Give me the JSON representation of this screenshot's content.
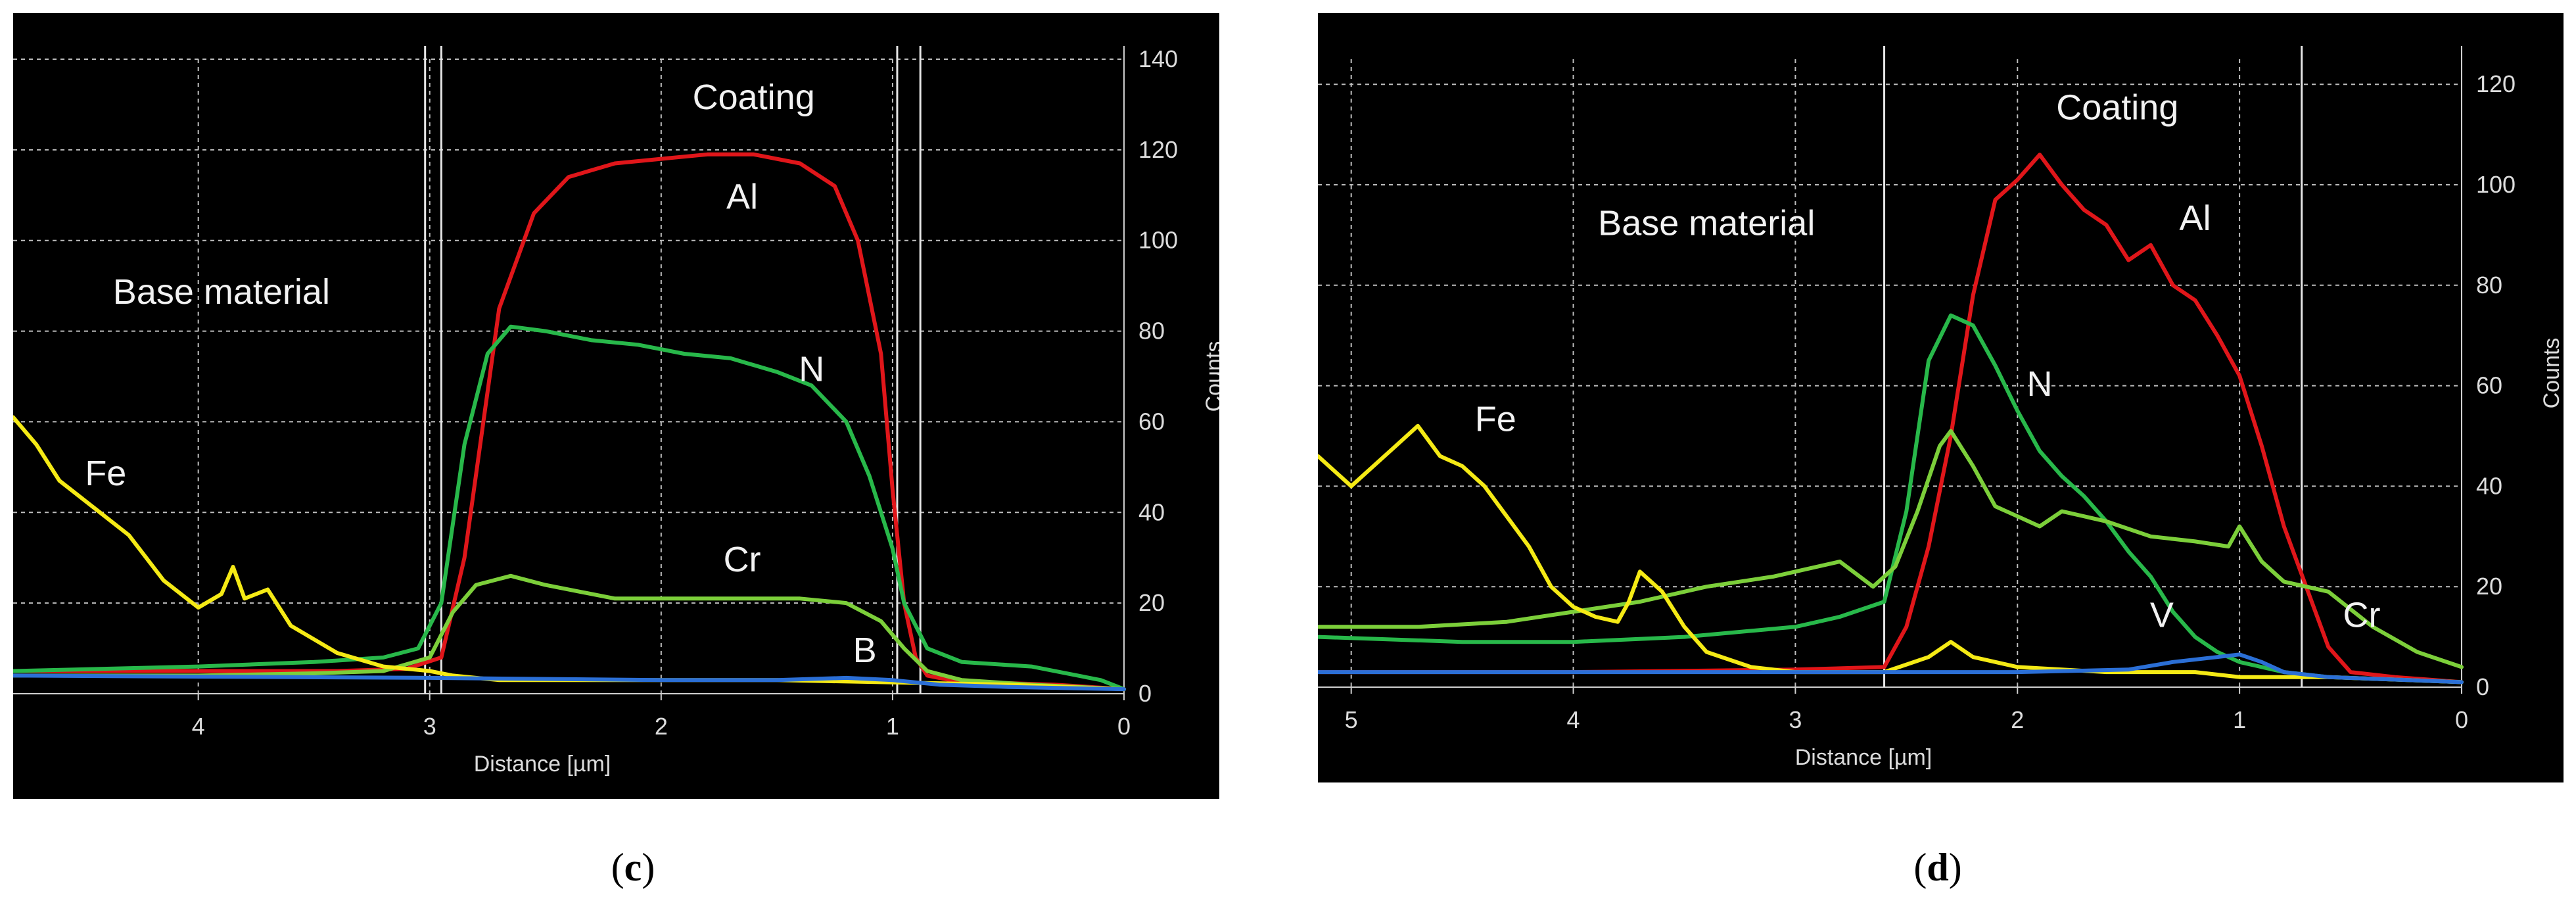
{
  "chart_data": [
    {
      "type": "line",
      "panel_label": "c",
      "xlabel": "Distance [µm]",
      "ylabel": "Counts",
      "xlim": [
        4.8,
        0
      ],
      "ylim": [
        0,
        140
      ],
      "xticks": [
        "4",
        "3",
        "2",
        "1",
        "0"
      ],
      "yticks": [
        "0",
        "20",
        "40",
        "60",
        "80",
        "100",
        "120",
        "140"
      ],
      "grid": true,
      "annotations": [
        {
          "text": "Coating",
          "x": 1.6,
          "y": 129
        },
        {
          "text": "Base material",
          "x": 3.9,
          "y": 86
        },
        {
          "text": "Al",
          "x": 1.65,
          "y": 107
        },
        {
          "text": "N",
          "x": 1.35,
          "y": 69
        },
        {
          "text": "Cr",
          "x": 1.65,
          "y": 27
        },
        {
          "text": "Fe",
          "x": 4.4,
          "y": 46
        },
        {
          "text": "B",
          "x": 1.12,
          "y": 7
        }
      ],
      "boundaries": [
        3.02,
        2.95,
        0.98,
        0.88
      ],
      "series": [
        {
          "name": "Al",
          "color": "#e0161a",
          "x": [
            4.8,
            4.0,
            3.4,
            3.1,
            2.95,
            2.85,
            2.7,
            2.55,
            2.4,
            2.2,
            2.0,
            1.8,
            1.6,
            1.4,
            1.25,
            1.15,
            1.05,
            1.0,
            0.95,
            0.9,
            0.85,
            0.75,
            0.6,
            0.3,
            0.0
          ],
          "values": [
            5,
            5,
            5,
            5.5,
            8,
            30,
            85,
            106,
            114,
            117,
            118,
            119,
            119,
            117,
            112,
            100,
            75,
            45,
            20,
            8,
            4,
            3,
            2.5,
            2,
            1
          ]
        },
        {
          "name": "N",
          "color": "#28b84a",
          "x": [
            4.8,
            4.0,
            3.5,
            3.2,
            3.05,
            2.95,
            2.85,
            2.75,
            2.65,
            2.5,
            2.3,
            2.1,
            1.9,
            1.7,
            1.5,
            1.35,
            1.2,
            1.1,
            1.0,
            0.95,
            0.85,
            0.7,
            0.4,
            0.1,
            0.0
          ],
          "values": [
            5,
            6,
            7,
            8,
            10,
            20,
            55,
            75,
            81,
            80,
            78,
            77,
            75,
            74,
            71,
            68,
            60,
            48,
            32,
            20,
            10,
            7,
            6,
            3,
            1
          ]
        },
        {
          "name": "Cr",
          "color": "#7ccf3a",
          "x": [
            4.8,
            4.0,
            3.5,
            3.2,
            3.0,
            2.9,
            2.8,
            2.65,
            2.5,
            2.2,
            1.8,
            1.4,
            1.2,
            1.05,
            0.95,
            0.85,
            0.7,
            0.4,
            0.0
          ],
          "values": [
            4,
            4,
            4.5,
            5,
            8,
            18,
            24,
            26,
            24,
            21,
            21,
            21,
            20,
            16,
            10,
            5,
            3,
            2,
            1
          ]
        },
        {
          "name": "Fe",
          "color": "#f5ea15",
          "x": [
            4.8,
            4.7,
            4.6,
            4.45,
            4.3,
            4.15,
            4.0,
            3.9,
            3.85,
            3.8,
            3.7,
            3.6,
            3.4,
            3.2,
            3.0,
            2.9,
            2.7,
            2.5,
            2.0,
            1.5,
            1.0,
            0.5,
            0.0
          ],
          "values": [
            61,
            55,
            47,
            41,
            35,
            25,
            19,
            22,
            28,
            21,
            23,
            15,
            9,
            6,
            5,
            4,
            3,
            3,
            3,
            3,
            2.5,
            2,
            1
          ]
        },
        {
          "name": "B",
          "color": "#2b6fd6",
          "x": [
            4.8,
            3.0,
            2.0,
            1.5,
            1.2,
            1.0,
            0.8,
            0.5,
            0.0
          ],
          "values": [
            4,
            3.5,
            3,
            3,
            3.5,
            3,
            2,
            1.5,
            1
          ]
        }
      ]
    },
    {
      "type": "line",
      "panel_label": "d",
      "xlabel": "Distance [µm]",
      "ylabel": "Counts",
      "xlim": [
        5.15,
        0
      ],
      "ylim": [
        0,
        125
      ],
      "xticks": [
        "5",
        "4",
        "3",
        "2",
        "1",
        "0"
      ],
      "yticks": [
        "0",
        "20",
        "40",
        "60",
        "80",
        "100",
        "120"
      ],
      "grid": true,
      "annotations": [
        {
          "text": "Coating",
          "x": 1.55,
          "y": 113
        },
        {
          "text": "Base material",
          "x": 3.4,
          "y": 90
        },
        {
          "text": "Al",
          "x": 1.2,
          "y": 91
        },
        {
          "text": "N",
          "x": 1.9,
          "y": 58
        },
        {
          "text": "Fe",
          "x": 4.35,
          "y": 51
        },
        {
          "text": "V",
          "x": 1.35,
          "y": 12
        },
        {
          "text": "Cr",
          "x": 0.45,
          "y": 12
        }
      ],
      "boundaries": [
        2.6,
        0.72
      ],
      "series": [
        {
          "name": "Al",
          "color": "#e0161a",
          "x": [
            5.15,
            4.0,
            3.0,
            2.6,
            2.5,
            2.4,
            2.3,
            2.2,
            2.1,
            2.0,
            1.9,
            1.8,
            1.7,
            1.6,
            1.5,
            1.4,
            1.3,
            1.2,
            1.1,
            1.0,
            0.9,
            0.8,
            0.7,
            0.6,
            0.5,
            0.3,
            0.0
          ],
          "values": [
            3,
            3,
            3.5,
            4,
            12,
            28,
            50,
            78,
            97,
            101,
            106,
            100,
            95,
            92,
            85,
            88,
            80,
            77,
            70,
            62,
            48,
            32,
            20,
            8,
            3,
            2,
            1
          ]
        },
        {
          "name": "N",
          "color": "#28b84a",
          "x": [
            5.15,
            4.5,
            4.0,
            3.5,
            3.0,
            2.8,
            2.6,
            2.5,
            2.4,
            2.3,
            2.2,
            2.1,
            2.0,
            1.9,
            1.8,
            1.7,
            1.6,
            1.5,
            1.4,
            1.3,
            1.2,
            1.1,
            1.0,
            0.9,
            0.8,
            0.6,
            0.3,
            0.0
          ],
          "values": [
            10,
            9,
            9,
            10,
            12,
            14,
            17,
            35,
            65,
            74,
            72,
            64,
            55,
            47,
            42,
            38,
            33,
            27,
            22,
            15,
            10,
            7,
            5,
            4,
            3,
            2,
            1.5,
            1
          ]
        },
        {
          "name": "Cr",
          "color": "#7ccf3a",
          "x": [
            5.15,
            4.7,
            4.3,
            4.0,
            3.7,
            3.4,
            3.1,
            2.8,
            2.65,
            2.55,
            2.45,
            2.35,
            2.3,
            2.2,
            2.1,
            2.0,
            1.9,
            1.8,
            1.6,
            1.4,
            1.2,
            1.05,
            1.0,
            0.9,
            0.8,
            0.6,
            0.4,
            0.2,
            0.0
          ],
          "values": [
            12,
            12,
            13,
            15,
            17,
            20,
            22,
            25,
            20,
            24,
            35,
            48,
            51,
            44,
            36,
            34,
            32,
            35,
            33,
            30,
            29,
            28,
            32,
            25,
            21,
            19,
            12,
            7,
            4
          ]
        },
        {
          "name": "Fe",
          "color": "#f5ea15",
          "x": [
            5.15,
            5.0,
            4.9,
            4.8,
            4.7,
            4.6,
            4.5,
            4.4,
            4.3,
            4.2,
            4.1,
            4.0,
            3.9,
            3.8,
            3.75,
            3.7,
            3.6,
            3.5,
            3.4,
            3.2,
            3.0,
            2.6,
            2.4,
            2.3,
            2.2,
            2.0,
            1.6,
            1.2,
            1.0,
            0.6,
            0.3,
            0.0
          ],
          "values": [
            46,
            40,
            44,
            48,
            52,
            46,
            44,
            40,
            34,
            28,
            20,
            16,
            14,
            13,
            17,
            23,
            19,
            12,
            7,
            4,
            3,
            3,
            6,
            9,
            6,
            4,
            3,
            3,
            2,
            2,
            1.5,
            1
          ]
        },
        {
          "name": "V",
          "color": "#2b6fd6",
          "x": [
            5.15,
            4.0,
            3.0,
            2.0,
            1.5,
            1.3,
            1.1,
            1.0,
            0.9,
            0.8,
            0.6,
            0.3,
            0.0
          ],
          "values": [
            3,
            3,
            3,
            3,
            3.5,
            5,
            6,
            6.5,
            5,
            3,
            2,
            1.5,
            1
          ]
        }
      ]
    }
  ]
}
